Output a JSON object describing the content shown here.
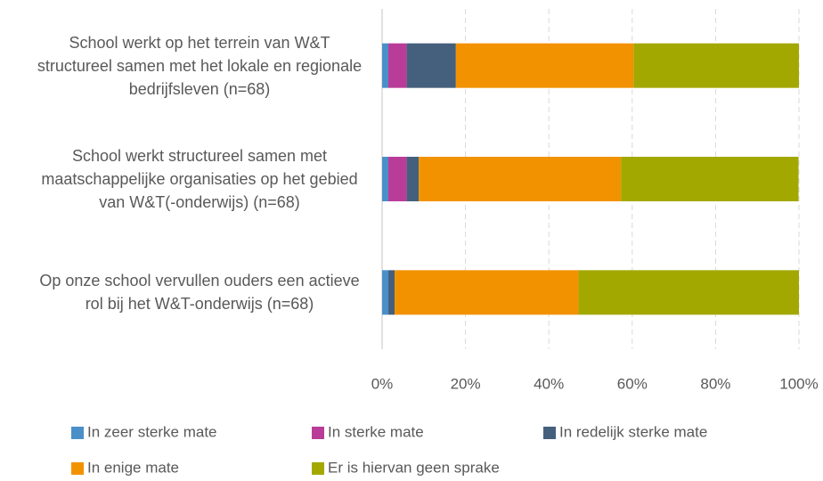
{
  "chart_data": {
    "type": "stacked_barh",
    "categories": [
      "School werkt op het terrein van W&T structureel samen met het lokale en regionale bedrijfsleven (n=68)",
      "School werkt structureel samen met maatschappelijke organisaties op het gebied van W&T(-onderwijs) (n=68)",
      "Op onze school vervullen ouders een actieve rol bij het W&T-onderwijs (n=68)"
    ],
    "series": [
      {
        "name": "In zeer sterke mate",
        "color": "#4a8fc7",
        "values": [
          1.5,
          1.5,
          1.5
        ]
      },
      {
        "name": "In sterke mate",
        "color": "#b93c98",
        "values": [
          4.4,
          4.4,
          0
        ]
      },
      {
        "name": "In redelijk sterke mate",
        "color": "#45607c",
        "values": [
          11.8,
          2.9,
          1.5
        ]
      },
      {
        "name": "In enige mate",
        "color": "#f39200",
        "values": [
          42.6,
          48.5,
          44.1
        ]
      },
      {
        "name": "Er is hiervan geen sprake",
        "color": "#a3a800",
        "values": [
          39.7,
          42.6,
          52.9
        ]
      }
    ],
    "xlim": [
      0,
      100
    ],
    "xticks": [
      {
        "value": 0,
        "label": "0%"
      },
      {
        "value": 20,
        "label": "20%"
      },
      {
        "value": 40,
        "label": "40%"
      },
      {
        "value": 60,
        "label": "60%"
      },
      {
        "value": 80,
        "label": "80%"
      },
      {
        "value": 100,
        "label": "100%"
      }
    ],
    "grid": true
  }
}
